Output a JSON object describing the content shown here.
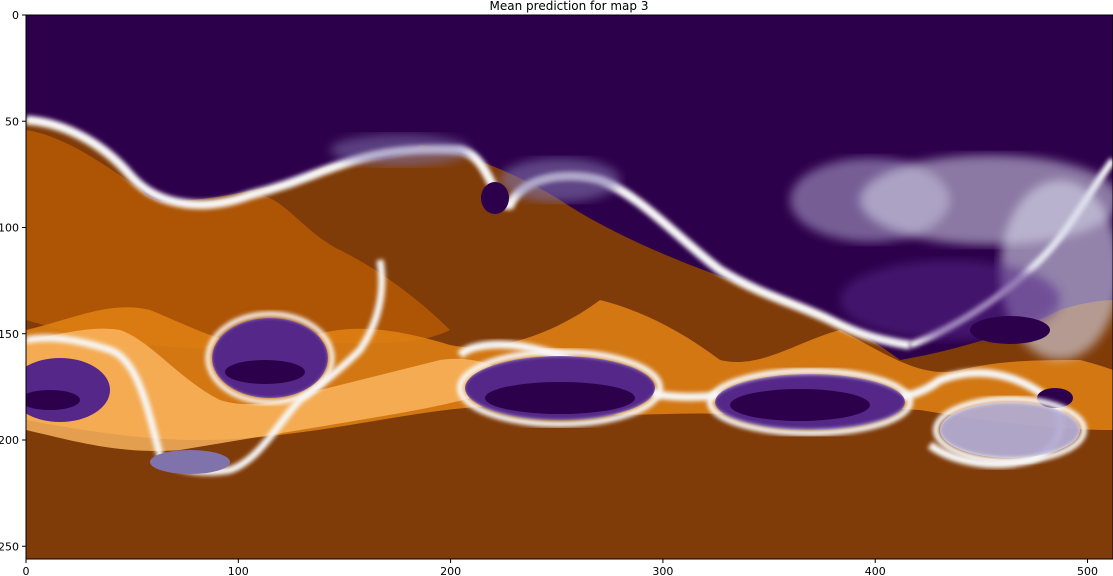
{
  "chart_data": {
    "type": "heatmap",
    "title": "Mean prediction for map 3",
    "xlabel": "",
    "ylabel": "",
    "xlim": [
      0,
      512
    ],
    "ylim": [
      256,
      0
    ],
    "x_ticks": [
      0,
      100,
      200,
      300,
      400,
      500
    ],
    "y_ticks": [
      0,
      50,
      100,
      150,
      200,
      250
    ],
    "colormap": "PuOr",
    "colors": {
      "low": "#2d004b",
      "mid": "#f7f7f7",
      "high": "#7f3b08",
      "orange": "#e08214"
    },
    "grid": false,
    "regions_description_values": {
      "upper_background": "low",
      "lower_background": "high"
    }
  }
}
